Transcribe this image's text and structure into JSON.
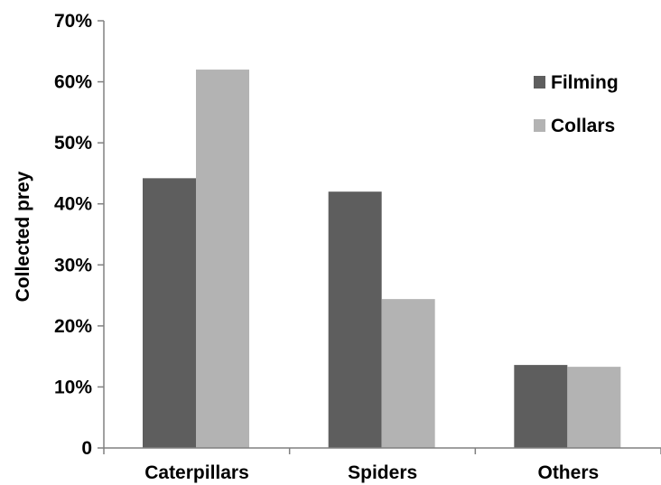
{
  "chart_data": {
    "type": "bar",
    "categories": [
      "Caterpillars",
      "Spiders",
      "Others"
    ],
    "series": [
      {
        "name": "Filming",
        "values": [
          44.2,
          42.0,
          13.6
        ],
        "color": "#5e5e5e"
      },
      {
        "name": "Collars",
        "values": [
          62.0,
          24.4,
          13.3
        ],
        "color": "#b3b3b3"
      }
    ],
    "title": "",
    "xlabel": "",
    "ylabel": "Collected prey",
    "ylim": [
      0,
      70
    ],
    "yticks": [
      0,
      10,
      20,
      30,
      40,
      50,
      60,
      70
    ],
    "ytick_labels": [
      "0",
      "10%",
      "20%",
      "30%",
      "40%",
      "50%",
      "60%",
      "70%"
    ],
    "grid": false,
    "legend_position": "top-right",
    "axis_color": "#808080"
  }
}
